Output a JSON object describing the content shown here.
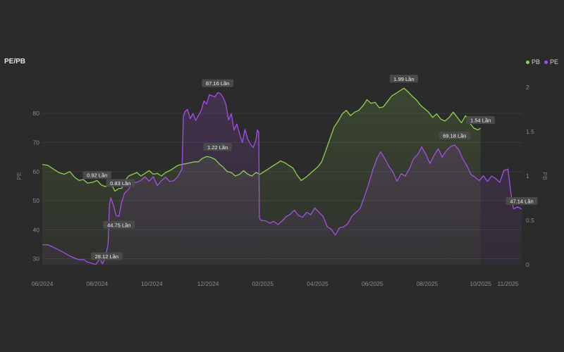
{
  "header": {
    "title": "PE/PB"
  },
  "legend": [
    {
      "label": "PB",
      "color": "#8fd14f"
    },
    {
      "label": "PE",
      "color": "#a64ee8"
    }
  ],
  "chart_data": {
    "type": "line",
    "title": "PE/PB",
    "ylabel_left": "PE",
    "ylabel_right": "PB",
    "ylim_left": [
      28,
      89
    ],
    "ylim_right": [
      0,
      2.0
    ],
    "yticks_left": [
      "30",
      "40",
      "50",
      "60",
      "70",
      "80"
    ],
    "yticks_right": [
      "0",
      "0.5",
      "1",
      "1.5",
      "2"
    ],
    "xticks": [
      "06/2024",
      "08/2024",
      "10/2024",
      "12/2024",
      "02/2025",
      "04/2025",
      "06/2025",
      "08/2025",
      "10/2025",
      "11/2025"
    ],
    "grid": true,
    "legend_position": "top-right",
    "series": [
      {
        "name": "PB",
        "axis": "right",
        "color": "#8fd14f",
        "points": [
          [
            0,
            1.13
          ],
          [
            4,
            1.12
          ],
          [
            8,
            1.08
          ],
          [
            12,
            1.04
          ],
          [
            16,
            1.02
          ],
          [
            20,
            1.05
          ],
          [
            24,
            0.98
          ],
          [
            27,
            0.95
          ],
          [
            30,
            0.96
          ],
          [
            33,
            0.92
          ],
          [
            37,
            0.93
          ],
          [
            40,
            0.95
          ],
          [
            43,
            0.9
          ],
          [
            46,
            0.88
          ],
          [
            50,
            0.92
          ],
          [
            53,
            0.83
          ],
          [
            56,
            0.86
          ],
          [
            58,
            0.86
          ],
          [
            60,
            0.94
          ],
          [
            63,
            1.0
          ],
          [
            66,
            1.02
          ],
          [
            69,
            1.04
          ],
          [
            72,
            1.0
          ],
          [
            75,
            1.03
          ],
          [
            78,
            1.06
          ],
          [
            81,
            1.02
          ],
          [
            84,
            1.03
          ],
          [
            87,
            1.0
          ],
          [
            90,
            1.04
          ],
          [
            93,
            1.06
          ],
          [
            96,
            1.09
          ],
          [
            99,
            1.12
          ],
          [
            102,
            1.13
          ],
          [
            105,
            1.14
          ],
          [
            108,
            1.15
          ],
          [
            111,
            1.16
          ],
          [
            114,
            1.16
          ],
          [
            117,
            1.2
          ],
          [
            120,
            1.22
          ],
          [
            123,
            1.21
          ],
          [
            126,
            1.19
          ],
          [
            129,
            1.14
          ],
          [
            132,
            1.1
          ],
          [
            135,
            1.05
          ],
          [
            138,
            1.04
          ],
          [
            141,
            1.0
          ],
          [
            144,
            1.02
          ],
          [
            147,
            1.06
          ],
          [
            150,
            1.02
          ],
          [
            153,
            1.0
          ],
          [
            156,
            1.04
          ],
          [
            159,
            1.02
          ],
          [
            162,
            1.05
          ],
          [
            165,
            1.08
          ],
          [
            168,
            1.11
          ],
          [
            171,
            1.14
          ],
          [
            174,
            1.17
          ],
          [
            177,
            1.15
          ],
          [
            180,
            1.12
          ],
          [
            183,
            1.09
          ],
          [
            186,
            1.01
          ],
          [
            189,
            0.95
          ],
          [
            192,
            0.98
          ],
          [
            195,
            1.02
          ],
          [
            198,
            1.06
          ],
          [
            201,
            1.1
          ],
          [
            204,
            1.16
          ],
          [
            207,
            1.29
          ],
          [
            210,
            1.42
          ],
          [
            213,
            1.55
          ],
          [
            216,
            1.62
          ],
          [
            219,
            1.7
          ],
          [
            222,
            1.74
          ],
          [
            225,
            1.68
          ],
          [
            228,
            1.72
          ],
          [
            231,
            1.74
          ],
          [
            234,
            1.79
          ],
          [
            237,
            1.86
          ],
          [
            240,
            1.82
          ],
          [
            243,
            1.83
          ],
          [
            246,
            1.77
          ],
          [
            249,
            1.78
          ],
          [
            252,
            1.84
          ],
          [
            255,
            1.9
          ],
          [
            258,
            1.93
          ],
          [
            261,
            1.96
          ],
          [
            264,
            1.99
          ],
          [
            267,
            1.95
          ],
          [
            270,
            1.9
          ],
          [
            273,
            1.86
          ],
          [
            276,
            1.8
          ],
          [
            279,
            1.76
          ],
          [
            282,
            1.72
          ],
          [
            285,
            1.66
          ],
          [
            288,
            1.7
          ],
          [
            291,
            1.64
          ],
          [
            294,
            1.62
          ],
          [
            297,
            1.66
          ],
          [
            300,
            1.72
          ],
          [
            303,
            1.66
          ],
          [
            306,
            1.6
          ],
          [
            309,
            1.68
          ],
          [
            312,
            1.6
          ],
          [
            315,
            1.54
          ],
          [
            318,
            1.52
          ],
          [
            320,
            1.54
          ]
        ]
      },
      {
        "name": "PE",
        "axis": "left",
        "color": "#a64ee8",
        "points": [
          [
            0,
            34.8
          ],
          [
            4,
            34.9
          ],
          [
            8,
            34.0
          ],
          [
            12,
            33.1
          ],
          [
            16,
            32.1
          ],
          [
            20,
            31.0
          ],
          [
            24,
            30.2
          ],
          [
            27,
            29.7
          ],
          [
            30,
            29.8
          ],
          [
            33,
            28.9
          ],
          [
            36,
            28.5
          ],
          [
            39,
            28.1
          ],
          [
            42,
            30.0
          ],
          [
            44,
            28.3
          ],
          [
            46,
            30.5
          ],
          [
            48,
            35.0
          ],
          [
            49,
            48.5
          ],
          [
            50,
            51.0
          ],
          [
            52,
            48.4
          ],
          [
            54,
            44.8
          ],
          [
            56,
            44.75
          ],
          [
            58,
            49.7
          ],
          [
            60,
            52.6
          ],
          [
            63,
            53.9
          ],
          [
            66,
            56.5
          ],
          [
            69,
            56.3
          ],
          [
            72,
            57.0
          ],
          [
            75,
            58.2
          ],
          [
            78,
            56.7
          ],
          [
            81,
            58.3
          ],
          [
            84,
            55.2
          ],
          [
            87,
            56.9
          ],
          [
            90,
            58.1
          ],
          [
            93,
            56.6
          ],
          [
            96,
            56.9
          ],
          [
            99,
            58.3
          ],
          [
            102,
            61.0
          ],
          [
            103,
            79.0
          ],
          [
            104,
            80.5
          ],
          [
            106,
            81.4
          ],
          [
            108,
            78.2
          ],
          [
            110,
            80.0
          ],
          [
            112,
            77.6
          ],
          [
            114,
            79.3
          ],
          [
            116,
            81.0
          ],
          [
            118,
            84.3
          ],
          [
            120,
            83.2
          ],
          [
            122,
            86.5
          ],
          [
            124,
            86.1
          ],
          [
            126,
            85.7
          ],
          [
            128,
            87.16
          ],
          [
            130,
            86.9
          ],
          [
            132,
            85.5
          ],
          [
            134,
            83.2
          ],
          [
            136,
            77.8
          ],
          [
            138,
            79.9
          ],
          [
            140,
            74.3
          ],
          [
            142,
            76.4
          ],
          [
            144,
            73.0
          ],
          [
            146,
            70.0
          ],
          [
            148,
            74.5
          ],
          [
            150,
            71.2
          ],
          [
            152,
            69.4
          ],
          [
            154,
            68.3
          ],
          [
            156,
            71.0
          ],
          [
            157,
            74.3
          ],
          [
            158,
            73.5
          ],
          [
            158.5,
            44.0
          ],
          [
            160,
            43.2
          ],
          [
            163,
            43.1
          ],
          [
            166,
            42.3
          ],
          [
            169,
            42.9
          ],
          [
            172,
            41.8
          ],
          [
            175,
            43.0
          ],
          [
            178,
            44.5
          ],
          [
            181,
            45.3
          ],
          [
            184,
            46.7
          ],
          [
            187,
            45.0
          ],
          [
            190,
            44.3
          ],
          [
            193,
            46.0
          ],
          [
            196,
            45.2
          ],
          [
            199,
            47.5
          ],
          [
            202,
            46.0
          ],
          [
            205,
            44.6
          ],
          [
            208,
            41.1
          ],
          [
            211,
            40.2
          ],
          [
            214,
            38.2
          ],
          [
            217,
            40.7
          ],
          [
            220,
            41.0
          ],
          [
            223,
            42.1
          ],
          [
            226,
            44.7
          ],
          [
            229,
            46.0
          ],
          [
            232,
            47.3
          ],
          [
            235,
            51.2
          ],
          [
            238,
            55.3
          ],
          [
            241,
            60.1
          ],
          [
            244,
            64.2
          ],
          [
            247,
            66.8
          ],
          [
            250,
            64.5
          ],
          [
            253,
            61.9
          ],
          [
            256,
            59.8
          ],
          [
            259,
            56.7
          ],
          [
            262,
            59.3
          ],
          [
            265,
            58.5
          ],
          [
            268,
            61.0
          ],
          [
            271,
            64.4
          ],
          [
            274,
            65.8
          ],
          [
            277,
            68.5
          ],
          [
            280,
            66.0
          ],
          [
            283,
            62.8
          ],
          [
            286,
            65.6
          ],
          [
            289,
            67.9
          ],
          [
            292,
            65.0
          ],
          [
            295,
            67.2
          ],
          [
            298,
            68.6
          ],
          [
            301,
            69.18
          ],
          [
            304,
            67.6
          ],
          [
            307,
            64.4
          ],
          [
            310,
            62.0
          ],
          [
            313,
            59.0
          ],
          [
            316,
            58.1
          ],
          [
            319,
            56.9
          ],
          [
            322,
            58.6
          ],
          [
            325,
            56.6
          ],
          [
            328,
            58.5
          ],
          [
            331,
            57.6
          ],
          [
            334,
            56.3
          ],
          [
            337,
            60.4
          ],
          [
            340,
            60.9
          ],
          [
            342,
            53.0
          ],
          [
            344,
            47.2
          ],
          [
            347,
            47.9
          ],
          [
            350,
            47.14
          ]
        ]
      }
    ],
    "annotations": [
      {
        "text": "0.92 Lần",
        "series": "PB",
        "value": 0.92
      },
      {
        "text": "0.83 Lần",
        "series": "PB",
        "value": 0.83
      },
      {
        "text": "1.22 Lần",
        "series": "PB",
        "value": 1.22
      },
      {
        "text": "1.99 Lần",
        "series": "PB",
        "value": 1.99
      },
      {
        "text": "1.54 Lần",
        "series": "PB",
        "value": 1.54
      },
      {
        "text": "28.12 Lần",
        "series": "PE",
        "value": 28.12
      },
      {
        "text": "44.75 Lần",
        "series": "PE",
        "value": 44.75
      },
      {
        "text": "87.16 Lần",
        "series": "PE",
        "value": 87.16
      },
      {
        "text": "69.18 Lần",
        "series": "PE",
        "value": 69.18
      },
      {
        "text": "47.14 Lần",
        "series": "PE",
        "value": 47.14
      }
    ]
  }
}
